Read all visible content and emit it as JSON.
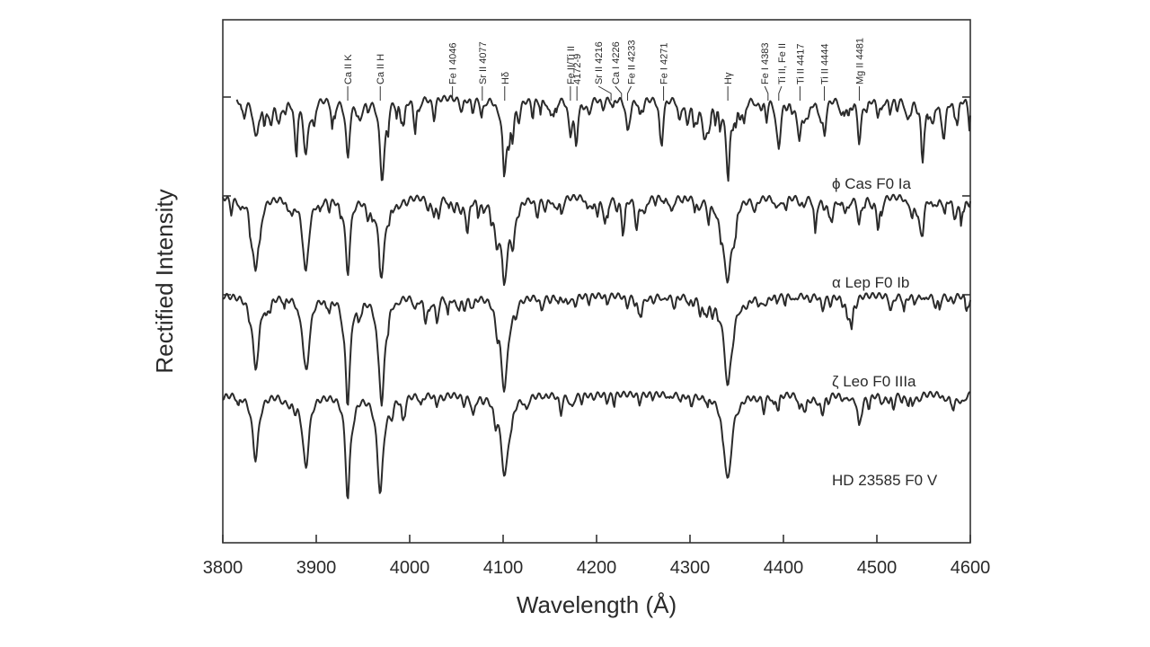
{
  "chart_data": {
    "type": "line",
    "title": "",
    "xlabel": "Wavelength (Å)",
    "ylabel": "Rectified Intensity",
    "xlim": [
      3800,
      4600
    ],
    "xticks": [
      3800,
      3900,
      4000,
      4100,
      4200,
      4300,
      4400,
      4500,
      4600
    ],
    "grid": false,
    "legend": "none",
    "series": [
      {
        "name": "ϕ Cas  F0 Ia",
        "offset": 3,
        "start": 3815,
        "end": 4600,
        "lines": [
          {
            "x": 3835,
            "d": 0.35,
            "w": 3
          },
          {
            "x": 3889,
            "d": 0.45,
            "w": 3
          },
          {
            "x": 3933.7,
            "d": 0.55,
            "w": 2.5
          },
          {
            "x": 3970,
            "d": 0.55,
            "w": 3
          },
          {
            "x": 4101.7,
            "d": 0.5,
            "w": 3
          },
          {
            "x": 4172,
            "d": 0.3,
            "w": 2
          },
          {
            "x": 4178,
            "d": 0.25,
            "w": 2
          },
          {
            "x": 4233,
            "d": 0.25,
            "w": 2
          },
          {
            "x": 4315,
            "d": 0.25,
            "w": 2
          },
          {
            "x": 4340.5,
            "d": 0.6,
            "w": 3
          },
          {
            "x": 4395,
            "d": 0.35,
            "w": 2
          },
          {
            "x": 4417,
            "d": 0.3,
            "w": 2
          },
          {
            "x": 4444,
            "d": 0.3,
            "w": 2
          },
          {
            "x": 4481,
            "d": 0.35,
            "w": 2
          },
          {
            "x": 4549,
            "d": 0.3,
            "w": 2
          },
          {
            "x": 4572,
            "d": 0.25,
            "w": 2
          }
        ]
      },
      {
        "name": "α Lep  F0 Ib",
        "offset": 2,
        "start": 3800,
        "end": 4600,
        "lines": [
          {
            "x": 3835,
            "d": 0.6,
            "w": 4
          },
          {
            "x": 3889,
            "d": 0.6,
            "w": 4
          },
          {
            "x": 3933.7,
            "d": 0.7,
            "w": 3
          },
          {
            "x": 3970,
            "d": 0.7,
            "w": 4
          },
          {
            "x": 4101.7,
            "d": 0.7,
            "w": 5
          },
          {
            "x": 4340.5,
            "d": 0.75,
            "w": 5
          },
          {
            "x": 4481,
            "d": 0.25,
            "w": 2
          },
          {
            "x": 4549,
            "d": 0.25,
            "w": 2
          }
        ]
      },
      {
        "name": "ζ Leo  F0 IIIa",
        "offset": 1,
        "start": 3800,
        "end": 4600,
        "lines": [
          {
            "x": 3835,
            "d": 0.65,
            "w": 4
          },
          {
            "x": 3889,
            "d": 0.65,
            "w": 4
          },
          {
            "x": 3933.7,
            "d": 0.85,
            "w": 3
          },
          {
            "x": 3970,
            "d": 0.8,
            "w": 4
          },
          {
            "x": 4101.7,
            "d": 0.75,
            "w": 5
          },
          {
            "x": 4340.5,
            "d": 0.8,
            "w": 5
          }
        ]
      },
      {
        "name": "HD 23585  F0 V",
        "offset": 0,
        "start": 3800,
        "end": 4600,
        "lines": [
          {
            "x": 3835,
            "d": 0.6,
            "w": 4
          },
          {
            "x": 3889,
            "d": 0.65,
            "w": 4
          },
          {
            "x": 3933.7,
            "d": 0.95,
            "w": 3
          },
          {
            "x": 3968.5,
            "d": 0.9,
            "w": 4
          },
          {
            "x": 4101.7,
            "d": 0.75,
            "w": 5
          },
          {
            "x": 4340.5,
            "d": 0.8,
            "w": 5
          },
          {
            "x": 4481,
            "d": 0.25,
            "w": 2
          }
        ]
      }
    ],
    "line_ids": [
      {
        "label": "Ca II K",
        "x": 3933.7,
        "text_x": 3933.7
      },
      {
        "label": "Ca II H",
        "x": 3968.5,
        "text_x": 3968.5
      },
      {
        "label": "Fe I 4046",
        "x": 4045.8,
        "text_x": 4045.8
      },
      {
        "label": "Sr II 4077",
        "x": 4077.7,
        "text_x": 4077.7
      },
      {
        "label": "Hδ",
        "x": 4101.7,
        "text_x": 4101.7
      },
      {
        "label": "Fe II/Ti II",
        "x": 4172,
        "text_x": 4172
      },
      {
        "label": "4172-9",
        "x": 4179,
        "text_x": 4179
      },
      {
        "label": "Sr II 4216",
        "x": 4215.5,
        "text_x": 4202
      },
      {
        "label": "Ca I 4226",
        "x": 4226.7,
        "text_x": 4220
      },
      {
        "label": "Fe II 4233",
        "x": 4233.2,
        "text_x": 4237
      },
      {
        "label": "Fe I 4271",
        "x": 4271.7,
        "text_x": 4271.7
      },
      {
        "label": "Hγ",
        "x": 4340.5,
        "text_x": 4340.5
      },
      {
        "label": "Fe I 4383",
        "x": 4383.5,
        "text_x": 4380
      },
      {
        "label": "Ti II, Fe II",
        "x": 4395,
        "text_x": 4398
      },
      {
        "label": "Ti II 4417",
        "x": 4417.7,
        "text_x": 4417.7
      },
      {
        "label": "Ti II 4444",
        "x": 4443.8,
        "text_x": 4443.8
      },
      {
        "label": "Mg II 4481",
        "x": 4481.2,
        "text_x": 4481.2
      }
    ]
  }
}
